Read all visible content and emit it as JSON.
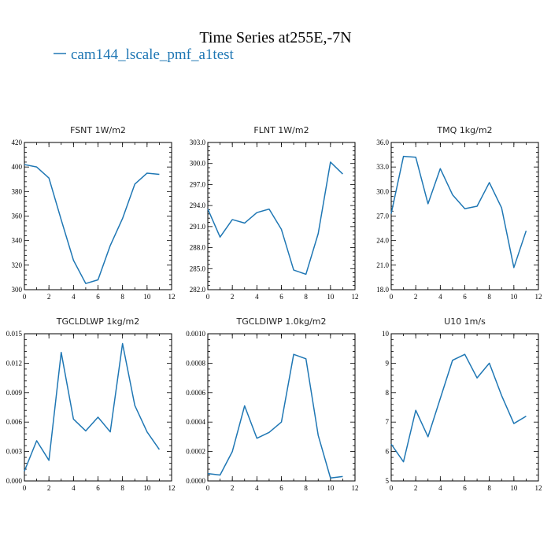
{
  "figure": {
    "title": "Time Series at255E,-7N",
    "legend": {
      "label": "cam144_lscale_pmf_a1test",
      "color": "#1f77b4"
    }
  },
  "chart_data": [
    {
      "type": "line",
      "title": "FSNT   1W/m2",
      "x": [
        0,
        1,
        2,
        3,
        4,
        5,
        6,
        7,
        8,
        9,
        10,
        11
      ],
      "series": [
        {
          "values": [
            402,
            400,
            391,
            357,
            324,
            305,
            308,
            336,
            358,
            386,
            395,
            394
          ]
        }
      ],
      "xlim": [
        0,
        12
      ],
      "ylim": [
        300,
        420
      ],
      "xticks": [
        0,
        2,
        4,
        6,
        8,
        10,
        12
      ],
      "yticks": [
        300,
        320,
        340,
        360,
        380,
        400,
        420
      ],
      "ytick_labels": [
        "300",
        "320",
        "340",
        "360",
        "380",
        "400",
        "420"
      ]
    },
    {
      "type": "line",
      "title": "FLNT   1W/m2",
      "x": [
        0,
        1,
        2,
        3,
        4,
        5,
        6,
        7,
        8,
        9,
        10,
        11
      ],
      "series": [
        {
          "values": [
            293.5,
            289.5,
            292,
            291.5,
            293,
            293.5,
            290.6,
            284.8,
            284.2,
            290,
            300.2,
            298.5
          ]
        }
      ],
      "xlim": [
        0,
        12
      ],
      "ylim": [
        282,
        303
      ],
      "xticks": [
        0,
        2,
        4,
        6,
        8,
        10,
        12
      ],
      "yticks": [
        282,
        285,
        288,
        291,
        294,
        297,
        300,
        303
      ],
      "ytick_labels": [
        "282.0",
        "285.0",
        "288.0",
        "291.0",
        "294.0",
        "297.0",
        "300.0",
        "303.0"
      ]
    },
    {
      "type": "line",
      "title": "TMQ   1kg/m2",
      "x": [
        0,
        1,
        2,
        3,
        4,
        5,
        6,
        7,
        8,
        9,
        10,
        11
      ],
      "series": [
        {
          "values": [
            27.3,
            34.3,
            34.2,
            28.5,
            32.8,
            29.6,
            27.9,
            28.2,
            31.1,
            28.0,
            20.7,
            25.2
          ]
        }
      ],
      "xlim": [
        0,
        12
      ],
      "ylim": [
        18,
        36
      ],
      "xticks": [
        0,
        2,
        4,
        6,
        8,
        10,
        12
      ],
      "yticks": [
        18,
        21,
        24,
        27,
        30,
        33,
        36
      ],
      "ytick_labels": [
        "18.0",
        "21.0",
        "24.0",
        "27.0",
        "30.0",
        "33.0",
        "36.0"
      ]
    },
    {
      "type": "line",
      "title": "TGCLDLWP   1kg/m2",
      "x": [
        0,
        1,
        2,
        3,
        4,
        5,
        6,
        7,
        8,
        9,
        10,
        11
      ],
      "series": [
        {
          "values": [
            0.001,
            0.0041,
            0.0021,
            0.0131,
            0.0063,
            0.0051,
            0.0065,
            0.005,
            0.014,
            0.0077,
            0.005,
            0.0032
          ]
        }
      ],
      "xlim": [
        0,
        12
      ],
      "ylim": [
        0,
        0.015
      ],
      "xticks": [
        0,
        2,
        4,
        6,
        8,
        10,
        12
      ],
      "yticks": [
        0,
        0.003,
        0.006,
        0.009,
        0.012,
        0.015
      ],
      "ytick_labels": [
        "0.000",
        "0.003",
        "0.006",
        "0.009",
        "0.012",
        "0.015"
      ]
    },
    {
      "type": "line",
      "title": "TGCLDIWP   1.0kg/m2",
      "x": [
        0,
        1,
        2,
        3,
        4,
        5,
        6,
        7,
        8,
        9,
        10,
        11
      ],
      "series": [
        {
          "values": [
            5e-05,
            4e-05,
            0.0002,
            0.00051,
            0.00029,
            0.00033,
            0.0004,
            0.00086,
            0.00083,
            0.00031,
            2e-05,
            3e-05
          ]
        }
      ],
      "xlim": [
        0,
        12
      ],
      "ylim": [
        0,
        0.001
      ],
      "xticks": [
        0,
        2,
        4,
        6,
        8,
        10,
        12
      ],
      "yticks": [
        0,
        0.0002,
        0.0004,
        0.0006,
        0.0008,
        0.001
      ],
      "ytick_labels": [
        "0.0000",
        "0.0002",
        "0.0004",
        "0.0006",
        "0.0008",
        "0.0010"
      ]
    },
    {
      "type": "line",
      "title": "U10   1m/s",
      "x": [
        0,
        1,
        2,
        3,
        4,
        5,
        6,
        7,
        8,
        9,
        10,
        11
      ],
      "series": [
        {
          "values": [
            6.25,
            5.65,
            7.4,
            6.5,
            7.8,
            9.1,
            9.3,
            8.5,
            9.0,
            7.9,
            6.95,
            7.2
          ]
        }
      ],
      "xlim": [
        0,
        12
      ],
      "ylim": [
        5,
        10
      ],
      "xticks": [
        0,
        2,
        4,
        6,
        8,
        10,
        12
      ],
      "yticks": [
        5,
        6,
        7,
        8,
        9,
        10
      ],
      "ytick_labels": [
        "5",
        "6",
        "7",
        "8",
        "9",
        "10"
      ]
    }
  ]
}
